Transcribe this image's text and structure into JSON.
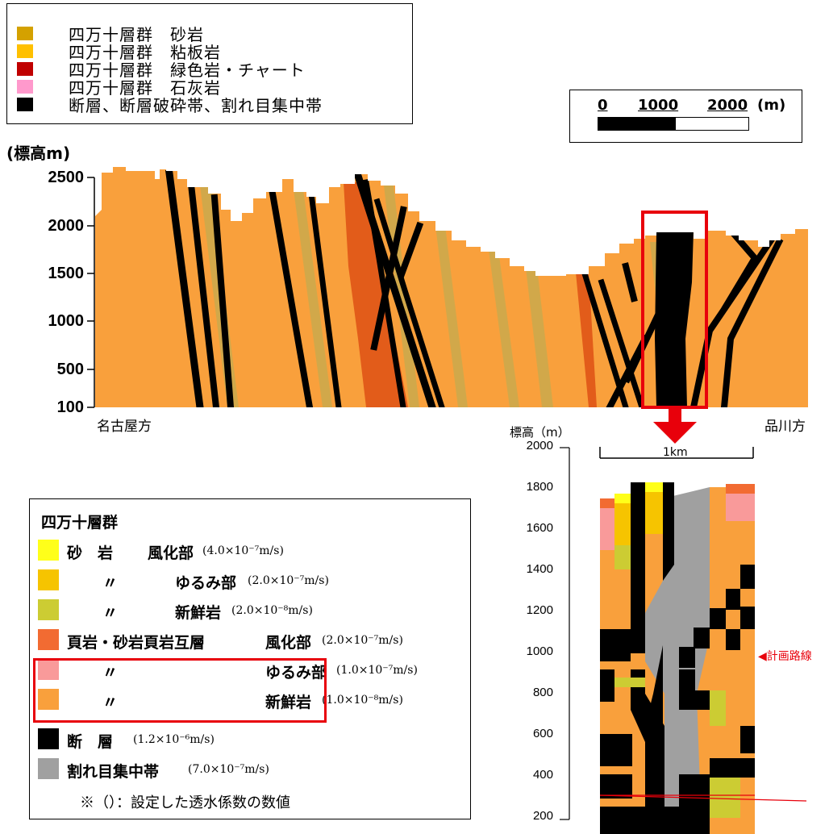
{
  "legend_top": {
    "items": [
      {
        "color": "#d4a100",
        "label": "四万十層群　砂岩"
      },
      {
        "color": "#ffc000",
        "label": "四万十層群　粘板岩"
      },
      {
        "color": "#c00000",
        "label": "四万十層群　緑色岩・チャート"
      },
      {
        "color": "#ff99cc",
        "label": "四万十層群　石灰岩"
      },
      {
        "color": "#000000",
        "label": "断層、断層破砕帯、割れ目集中帯"
      }
    ]
  },
  "scale_bar": {
    "ticks": [
      "0",
      "1000",
      "2000"
    ],
    "unit": "(m)"
  },
  "profile": {
    "y_title": "(標高m)",
    "y_ticks": [
      "2500",
      "2000",
      "1500",
      "1000",
      "500",
      "100"
    ],
    "left_label": "名古屋方",
    "right_label": "品川方",
    "colors": {
      "slate": "#f9a03c",
      "sandstone": "#d1a84a",
      "greenstone": "#e25c1a",
      "fault": "#000000",
      "highlight": "#e8000b"
    }
  },
  "detail": {
    "y_title": "標高（m）",
    "y_ticks": [
      "2000",
      "1800",
      "1600",
      "1400",
      "1200",
      "1000",
      "800",
      "600",
      "400",
      "200"
    ],
    "scale_label": "1km",
    "route_label": "◀計画路線",
    "colors": {
      "fresh": "#f9a03c",
      "loosened": "#f6c400",
      "weathered_sand": "#ffff1a",
      "fresh_sand": "#cccc33",
      "shale_weathered": "#f26b32",
      "shale_loosened": "#f99a9a",
      "fault": "#000000",
      "fracture": "#a0a0a0"
    }
  },
  "legend_bottom": {
    "group_title": "四万十層群",
    "rows": [
      {
        "color": "#ffff1a",
        "name": "砂　岩",
        "part": "風化部",
        "coef": "(4.0×10⁻⁷m/s)"
      },
      {
        "color": "#f6c400",
        "name": "〃",
        "part": "ゆるみ部",
        "coef": "(2.0×10⁻⁷m/s)"
      },
      {
        "color": "#cccc33",
        "name": "〃",
        "part": "新鮮岩",
        "coef": "(2.0×10⁻⁸m/s)"
      },
      {
        "color": "#f26b32",
        "name": "頁岩・砂岩頁岩互層",
        "part": "風化部",
        "coef": "(2.0×10⁻⁷m/s)"
      },
      {
        "color": "#f99a9a",
        "name": "〃",
        "part": "ゆるみ部",
        "coef": "(1.0×10⁻⁷m/s)"
      },
      {
        "color": "#f9a03c",
        "name": "〃",
        "part": "新鮮岩",
        "coef": "(1.0×10⁻⁸m/s)"
      }
    ],
    "fault_rows": [
      {
        "color": "#000000",
        "name": "断　層",
        "coef": "(1.2×10⁻⁶m/s)"
      },
      {
        "color": "#a0a0a0",
        "name": "割れ目集中帯",
        "coef": "(7.0×10⁻⁷m/s)"
      }
    ],
    "note": "※（）：設定した透水係数の数値"
  }
}
